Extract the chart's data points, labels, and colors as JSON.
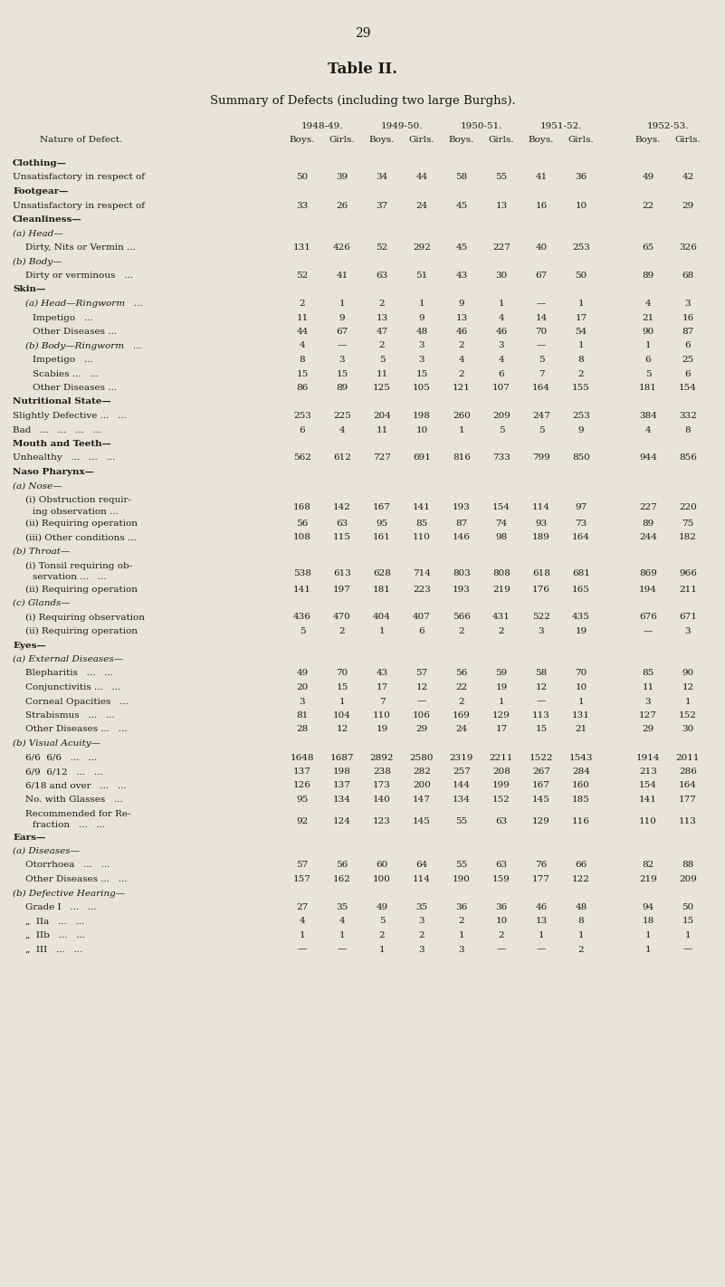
{
  "page_number": "29",
  "title": "Table II.",
  "subtitle_parts": [
    {
      "text": "S",
      "size": 10,
      "smallcaps_upper": true
    },
    {
      "text": "UMMARY OF ",
      "size": 7.5,
      "smallcaps_upper": true
    },
    {
      "text": "D",
      "size": 10,
      "smallcaps_upper": true
    },
    {
      "text": "EFECTS",
      "size": 7.5,
      "smallcaps_upper": true
    },
    {
      "text": " (including two large Burghs).",
      "size": 10,
      "smallcaps_upper": false
    }
  ],
  "subtitle": "SUMMARY OF DEFECTS (including two large Burghs).",
  "year_headers": [
    "1948-49.",
    "1949-50.",
    "1950-51.",
    "1951-52.",
    "1952-53."
  ],
  "col_pairs": [
    "Boys.",
    "Girls."
  ],
  "nature_label": "Nature of Defect.",
  "rows": [
    {
      "label": "Clothing—",
      "bold": true,
      "indent": 0,
      "multiline": false,
      "values": [
        "",
        "",
        "",
        "",
        "",
        "",
        "",
        "",
        "",
        ""
      ]
    },
    {
      "label": "Unsatisfactory in respect of",
      "bold": false,
      "indent": 1,
      "multiline": false,
      "values": [
        "50",
        "39",
        "34",
        "44",
        "58",
        "55",
        "41",
        "36",
        "49",
        "42"
      ]
    },
    {
      "label": "Footgear—",
      "bold": true,
      "indent": 0,
      "multiline": false,
      "values": [
        "",
        "",
        "",
        "",
        "",
        "",
        "",
        "",
        "",
        ""
      ]
    },
    {
      "label": "Unsatisfactory in respect of",
      "bold": false,
      "indent": 1,
      "multiline": false,
      "values": [
        "33",
        "26",
        "37",
        "24",
        "45",
        "13",
        "16",
        "10",
        "22",
        "29"
      ]
    },
    {
      "label": "Cleanliness—",
      "bold": true,
      "indent": 0,
      "multiline": false,
      "values": [
        "",
        "",
        "",
        "",
        "",
        "",
        "",
        "",
        "",
        ""
      ]
    },
    {
      "label": "(a) Head—",
      "bold": false,
      "italic": true,
      "indent": 1,
      "multiline": false,
      "values": [
        "",
        "",
        "",
        "",
        "",
        "",
        "",
        "",
        "",
        ""
      ]
    },
    {
      "label": "Dirty, Nits or Vermin ...",
      "bold": false,
      "indent": 2,
      "multiline": false,
      "values": [
        "131",
        "426",
        "52",
        "292",
        "45",
        "227",
        "40",
        "253",
        "65",
        "326"
      ]
    },
    {
      "label": "(b) Body—",
      "bold": false,
      "italic": true,
      "indent": 1,
      "multiline": false,
      "values": [
        "",
        "",
        "",
        "",
        "",
        "",
        "",
        "",
        "",
        ""
      ]
    },
    {
      "label": "Dirty or verminous   ...",
      "bold": false,
      "indent": 2,
      "multiline": false,
      "values": [
        "52",
        "41",
        "63",
        "51",
        "43",
        "30",
        "67",
        "50",
        "89",
        "68"
      ]
    },
    {
      "label": "Skin—",
      "bold": true,
      "indent": 0,
      "multiline": false,
      "values": [
        "",
        "",
        "",
        "",
        "",
        "",
        "",
        "",
        "",
        ""
      ]
    },
    {
      "label": "(a) Head—Ringworm   ...",
      "bold": false,
      "italic": true,
      "indent": 2,
      "multiline": false,
      "values": [
        "2",
        "1",
        "2",
        "1",
        "9",
        "1",
        "—",
        "1",
        "4",
        "3"
      ]
    },
    {
      "label": "Impetigo   ...",
      "bold": false,
      "indent": 3,
      "multiline": false,
      "values": [
        "11",
        "9",
        "13",
        "9",
        "13",
        "4",
        "14",
        "17",
        "21",
        "16"
      ]
    },
    {
      "label": "Other Diseases ...",
      "bold": false,
      "indent": 3,
      "multiline": false,
      "values": [
        "44",
        "67",
        "47",
        "48",
        "46",
        "46",
        "70",
        "54",
        "90",
        "87"
      ]
    },
    {
      "label": "(b) Body—Ringworm   ...",
      "bold": false,
      "italic": true,
      "indent": 2,
      "multiline": false,
      "values": [
        "4",
        "—",
        "2",
        "3",
        "2",
        "3",
        "—",
        "1",
        "1",
        "6"
      ]
    },
    {
      "label": "Impetigo   ...",
      "bold": false,
      "indent": 3,
      "multiline": false,
      "values": [
        "8",
        "3",
        "5",
        "3",
        "4",
        "4",
        "5",
        "8",
        "6",
        "25"
      ]
    },
    {
      "label": "Scabies ...   ...",
      "bold": false,
      "indent": 3,
      "multiline": false,
      "values": [
        "15",
        "15",
        "11",
        "15",
        "2",
        "6",
        "7",
        "2",
        "5",
        "6"
      ]
    },
    {
      "label": "Other Diseases ...",
      "bold": false,
      "indent": 3,
      "multiline": false,
      "values": [
        "86",
        "89",
        "125",
        "105",
        "121",
        "107",
        "164",
        "155",
        "181",
        "154"
      ]
    },
    {
      "label": "Nutritional State—",
      "bold": true,
      "indent": 0,
      "multiline": false,
      "values": [
        "",
        "",
        "",
        "",
        "",
        "",
        "",
        "",
        "",
        ""
      ]
    },
    {
      "label": "Slightly Defective ...   ...",
      "bold": false,
      "indent": 1,
      "multiline": false,
      "values": [
        "253",
        "225",
        "204",
        "198",
        "260",
        "209",
        "247",
        "253",
        "384",
        "332"
      ]
    },
    {
      "label": "Bad   ...   ...   ...   ...",
      "bold": false,
      "indent": 1,
      "multiline": false,
      "values": [
        "6",
        "4",
        "11",
        "10",
        "1",
        "5",
        "5",
        "9",
        "4",
        "8"
      ]
    },
    {
      "label": "Mouth and Teeth—",
      "bold": true,
      "indent": 0,
      "multiline": false,
      "values": [
        "",
        "",
        "",
        "",
        "",
        "",
        "",
        "",
        "",
        ""
      ]
    },
    {
      "label": "Unhealthy   ...   ...   ...",
      "bold": false,
      "indent": 1,
      "multiline": false,
      "values": [
        "562",
        "612",
        "727",
        "691",
        "816",
        "733",
        "799",
        "850",
        "944",
        "856"
      ]
    },
    {
      "label": "Naso Pharynx—",
      "bold": true,
      "indent": 0,
      "multiline": false,
      "values": [
        "",
        "",
        "",
        "",
        "",
        "",
        "",
        "",
        "",
        ""
      ]
    },
    {
      "label": "(a) Nose—",
      "bold": false,
      "italic": true,
      "indent": 1,
      "multiline": false,
      "values": [
        "",
        "",
        "",
        "",
        "",
        "",
        "",
        "",
        "",
        ""
      ]
    },
    {
      "label": "(i) Obstruction requir-",
      "bold": false,
      "indent": 2,
      "multiline": true,
      "line2": "ing observation ...",
      "values": [
        "168",
        "142",
        "167",
        "141",
        "193",
        "154",
        "114",
        "97",
        "227",
        "220"
      ]
    },
    {
      "label": "(ii) Requiring operation",
      "bold": false,
      "indent": 2,
      "multiline": false,
      "values": [
        "56",
        "63",
        "95",
        "85",
        "87",
        "74",
        "93",
        "73",
        "89",
        "75"
      ]
    },
    {
      "label": "(iii) Other conditions ...",
      "bold": false,
      "indent": 2,
      "multiline": false,
      "values": [
        "108",
        "115",
        "161",
        "110",
        "146",
        "98",
        "189",
        "164",
        "244",
        "182"
      ]
    },
    {
      "label": "(b) Throat—",
      "bold": false,
      "italic": true,
      "indent": 1,
      "multiline": false,
      "values": [
        "",
        "",
        "",
        "",
        "",
        "",
        "",
        "",
        "",
        ""
      ]
    },
    {
      "label": "(i) Tonsil requiring ob-",
      "bold": false,
      "indent": 2,
      "multiline": true,
      "line2": "servation ...   ...",
      "values": [
        "538",
        "613",
        "628",
        "714",
        "803",
        "808",
        "618",
        "681",
        "869",
        "966"
      ]
    },
    {
      "label": "(ii) Requiring operation",
      "bold": false,
      "indent": 2,
      "multiline": false,
      "values": [
        "141",
        "197",
        "181",
        "223",
        "193",
        "219",
        "176",
        "165",
        "194",
        "211"
      ]
    },
    {
      "label": "(c) Glands—",
      "bold": false,
      "italic": true,
      "indent": 1,
      "multiline": false,
      "values": [
        "",
        "",
        "",
        "",
        "",
        "",
        "",
        "",
        "",
        ""
      ]
    },
    {
      "label": "(i) Requiring observation",
      "bold": false,
      "indent": 2,
      "multiline": false,
      "values": [
        "436",
        "470",
        "404",
        "407",
        "566",
        "431",
        "522",
        "435",
        "676",
        "671"
      ]
    },
    {
      "label": "(ii) Requiring operation",
      "bold": false,
      "indent": 2,
      "multiline": false,
      "values": [
        "5",
        "2",
        "1",
        "6",
        "2",
        "2",
        "3",
        "19",
        "—",
        "3"
      ]
    },
    {
      "label": "Eyes—",
      "bold": true,
      "indent": 0,
      "multiline": false,
      "values": [
        "",
        "",
        "",
        "",
        "",
        "",
        "",
        "",
        "",
        ""
      ]
    },
    {
      "label": "(a) External Diseases—",
      "bold": false,
      "italic": true,
      "indent": 1,
      "multiline": false,
      "values": [
        "",
        "",
        "",
        "",
        "",
        "",
        "",
        "",
        "",
        ""
      ]
    },
    {
      "label": "Blepharitis   ...   ...",
      "bold": false,
      "indent": 2,
      "multiline": false,
      "values": [
        "49",
        "70",
        "43",
        "57",
        "56",
        "59",
        "58",
        "70",
        "85",
        "90"
      ]
    },
    {
      "label": "Conjunctivitis ...   ...",
      "bold": false,
      "indent": 2,
      "multiline": false,
      "values": [
        "20",
        "15",
        "17",
        "12",
        "22",
        "19",
        "12",
        "10",
        "11",
        "12"
      ]
    },
    {
      "label": "Corneal Opacities   ...",
      "bold": false,
      "indent": 2,
      "multiline": false,
      "values": [
        "3",
        "1",
        "7",
        "—",
        "2",
        "1",
        "—",
        "1",
        "3",
        "1"
      ]
    },
    {
      "label": "Strabismus   ...   ...",
      "bold": false,
      "indent": 2,
      "multiline": false,
      "values": [
        "81",
        "104",
        "110",
        "106",
        "169",
        "129",
        "113",
        "131",
        "127",
        "152"
      ]
    },
    {
      "label": "Other Diseases ...   ...",
      "bold": false,
      "indent": 2,
      "multiline": false,
      "values": [
        "28",
        "12",
        "19",
        "29",
        "24",
        "17",
        "15",
        "21",
        "29",
        "30"
      ]
    },
    {
      "label": "(b) Visual Acuity—",
      "bold": false,
      "italic": true,
      "indent": 1,
      "multiline": false,
      "values": [
        "",
        "",
        "",
        "",
        "",
        "",
        "",
        "",
        "",
        ""
      ]
    },
    {
      "label": "6/6  6/6   ...   ...",
      "bold": false,
      "indent": 2,
      "multiline": false,
      "values": [
        "1648",
        "1687",
        "2892",
        "2580",
        "2319",
        "2211",
        "1522",
        "1543",
        "1914",
        "2011"
      ]
    },
    {
      "label": "6/9  6/12   ...   ...",
      "bold": false,
      "indent": 2,
      "multiline": false,
      "values": [
        "137",
        "198",
        "238",
        "282",
        "257",
        "208",
        "267",
        "284",
        "213",
        "286"
      ]
    },
    {
      "label": "6/18 and over   ...   ...",
      "bold": false,
      "indent": 2,
      "multiline": false,
      "values": [
        "126",
        "137",
        "173",
        "200",
        "144",
        "199",
        "167",
        "160",
        "154",
        "164"
      ]
    },
    {
      "label": "No. with Glasses   ...",
      "bold": false,
      "indent": 2,
      "multiline": false,
      "values": [
        "95",
        "134",
        "140",
        "147",
        "134",
        "152",
        "145",
        "185",
        "141",
        "177"
      ]
    },
    {
      "label": "Recommended for Re-",
      "bold": false,
      "indent": 2,
      "multiline": true,
      "line2": "fraction   ...   ...",
      "values": [
        "92",
        "124",
        "123",
        "145",
        "55",
        "63",
        "129",
        "116",
        "110",
        "113"
      ]
    },
    {
      "label": "Ears—",
      "bold": true,
      "indent": 0,
      "multiline": false,
      "values": [
        "",
        "",
        "",
        "",
        "",
        "",
        "",
        "",
        "",
        ""
      ]
    },
    {
      "label": "(a) Diseases—",
      "bold": false,
      "italic": true,
      "indent": 1,
      "multiline": false,
      "values": [
        "",
        "",
        "",
        "",
        "",
        "",
        "",
        "",
        "",
        ""
      ]
    },
    {
      "label": "Otorrhoea   ...   ...",
      "bold": false,
      "indent": 2,
      "multiline": false,
      "values": [
        "57",
        "56",
        "60",
        "64",
        "55",
        "63",
        "76",
        "66",
        "82",
        "88"
      ]
    },
    {
      "label": "Other Diseases ...   ...",
      "bold": false,
      "indent": 2,
      "multiline": false,
      "values": [
        "157",
        "162",
        "100",
        "114",
        "190",
        "159",
        "177",
        "122",
        "219",
        "209"
      ]
    },
    {
      "label": "(b) Defective Hearing—",
      "bold": false,
      "italic": true,
      "indent": 1,
      "multiline": false,
      "values": [
        "",
        "",
        "",
        "",
        "",
        "",
        "",
        "",
        "",
        ""
      ]
    },
    {
      "label": "Grade I   ...   ...",
      "bold": false,
      "indent": 2,
      "multiline": false,
      "values": [
        "27",
        "35",
        "49",
        "35",
        "36",
        "36",
        "46",
        "48",
        "94",
        "50"
      ]
    },
    {
      "label": "„  IIa   ...   ...",
      "bold": false,
      "indent": 2,
      "multiline": false,
      "values": [
        "4",
        "4",
        "5",
        "3",
        "2",
        "10",
        "13",
        "8",
        "18",
        "15"
      ]
    },
    {
      "label": "„  IIb   ...   ...",
      "bold": false,
      "indent": 2,
      "multiline": false,
      "values": [
        "1",
        "1",
        "2",
        "2",
        "1",
        "2",
        "1",
        "1",
        "1",
        "1"
      ]
    },
    {
      "label": "„  III   ...   ...",
      "bold": false,
      "indent": 2,
      "multiline": false,
      "values": [
        "—",
        "—",
        "1",
        "3",
        "3",
        "—",
        "—",
        "2",
        "1",
        "—"
      ]
    }
  ],
  "bg_color": "#e8e4d9",
  "text_color": "#1a1a1a"
}
